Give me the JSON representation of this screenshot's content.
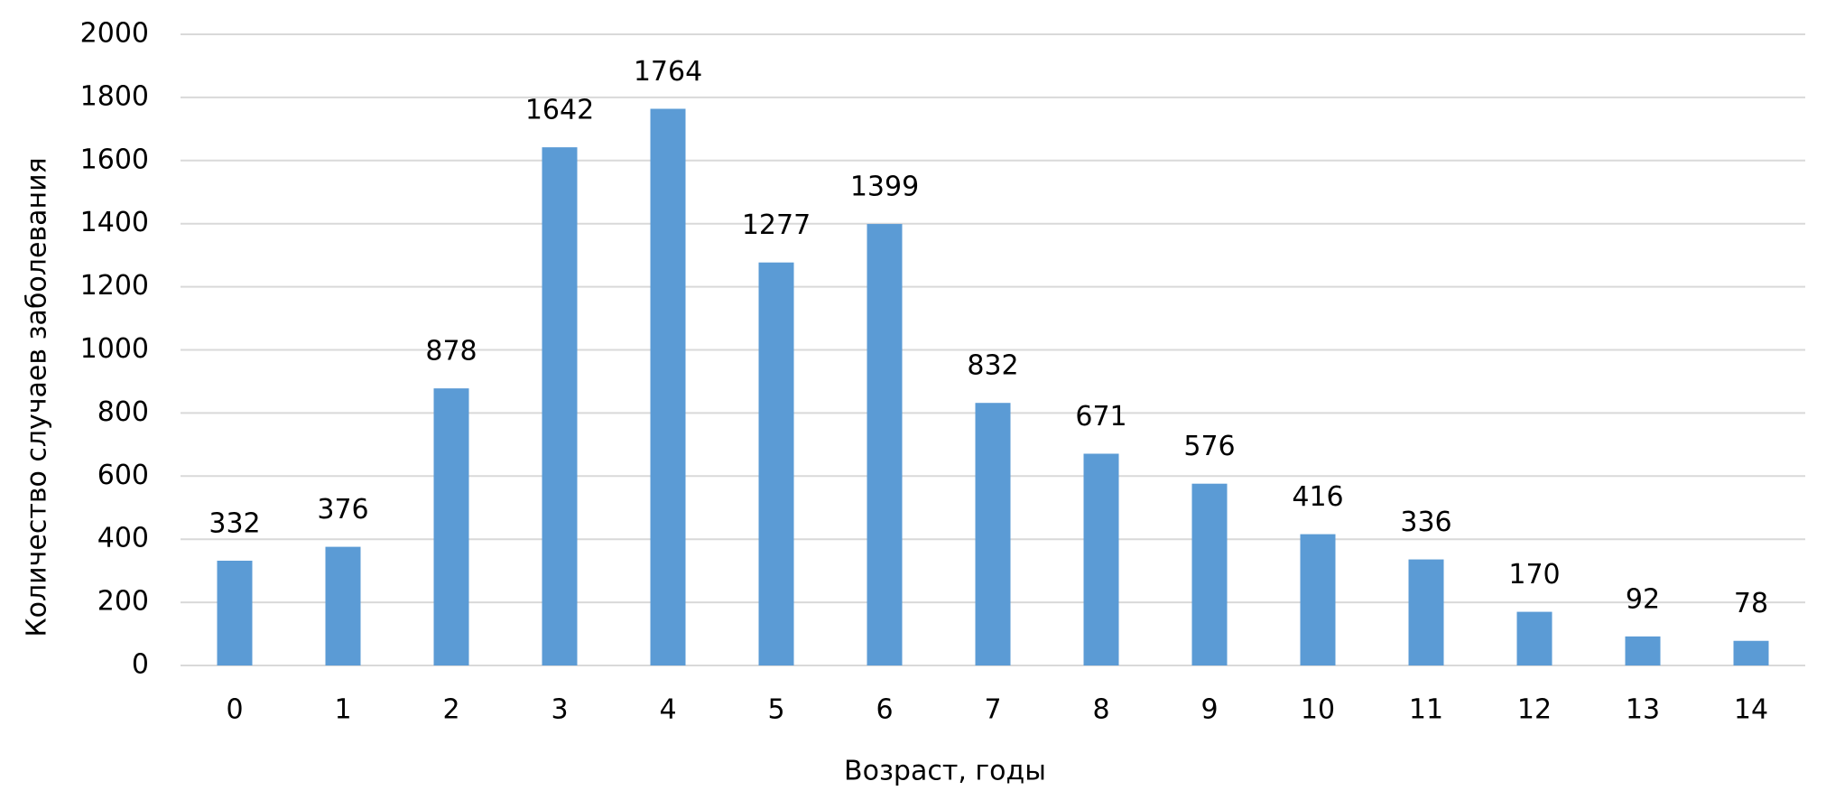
{
  "chart_data": {
    "type": "bar",
    "xlabel": "Возраст, годы",
    "ylabel": "Количество случаев заболевания",
    "categories": [
      "0",
      "1",
      "2",
      "3",
      "4",
      "5",
      "6",
      "7",
      "8",
      "9",
      "10",
      "11",
      "12",
      "13",
      "14"
    ],
    "values": [
      332,
      376,
      878,
      1642,
      1764,
      1277,
      1399,
      832,
      671,
      576,
      416,
      336,
      170,
      92,
      78
    ],
    "color": "#5b9bd5",
    "ylim": [
      0,
      2000
    ],
    "yticks": [
      0,
      200,
      400,
      600,
      800,
      1000,
      1200,
      1400,
      1600,
      1800,
      2000
    ],
    "grid": true
  }
}
